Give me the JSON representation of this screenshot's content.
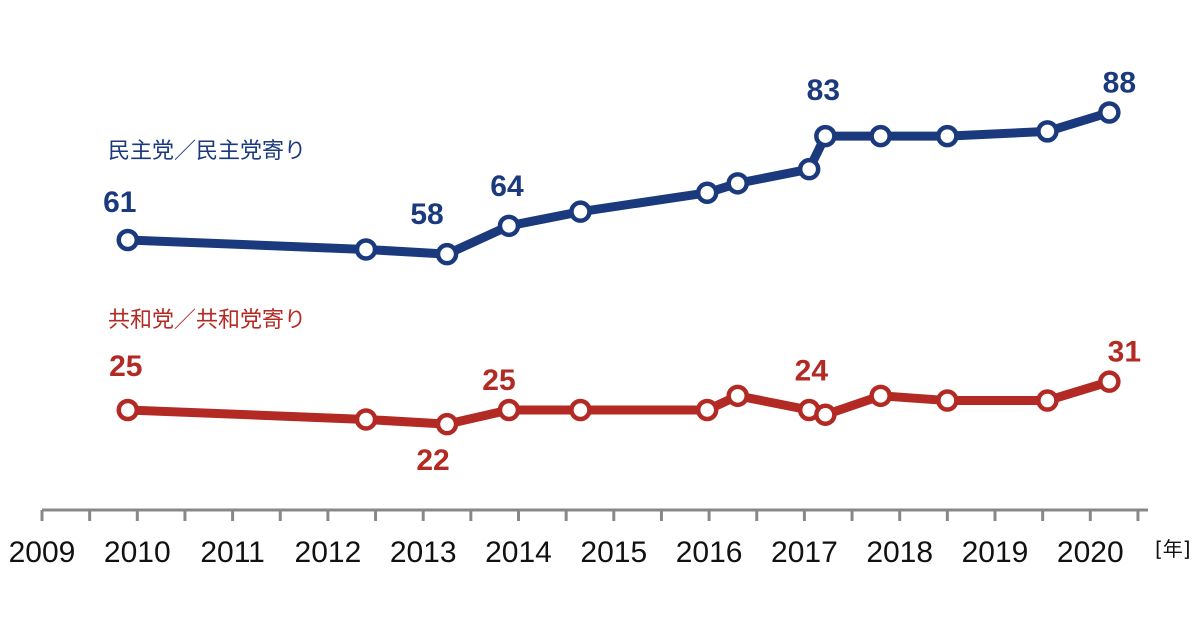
{
  "chart_data": {
    "type": "line",
    "title": "",
    "xlabel": "",
    "ylabel": "",
    "x_unit": "[年]",
    "xlim": [
      2009,
      2020.5
    ],
    "ylim": [
      15,
      95
    ],
    "x_ticks": [
      "2009",
      "2010",
      "2011",
      "2012",
      "2013",
      "2014",
      "2015",
      "2016",
      "2017",
      "2018",
      "2019",
      "2020"
    ],
    "series": [
      {
        "name": "民主党／民主党寄り",
        "color": "#1b3a7e",
        "points": [
          {
            "x": 2009.9,
            "y": 61,
            "label": "61"
          },
          {
            "x": 2012.4,
            "y": 59
          },
          {
            "x": 2013.25,
            "y": 58,
            "label": "58"
          },
          {
            "x": 2013.9,
            "y": 64,
            "label": "64"
          },
          {
            "x": 2014.65,
            "y": 67
          },
          {
            "x": 2015.98,
            "y": 71
          },
          {
            "x": 2016.3,
            "y": 73
          },
          {
            "x": 2017.05,
            "y": 76
          },
          {
            "x": 2017.22,
            "y": 83,
            "label": "83"
          },
          {
            "x": 2017.8,
            "y": 83
          },
          {
            "x": 2018.5,
            "y": 83
          },
          {
            "x": 2019.55,
            "y": 84
          },
          {
            "x": 2020.2,
            "y": 88,
            "label": "88"
          }
        ]
      },
      {
        "name": "共和党／共和党寄り",
        "color": "#b32a24",
        "points": [
          {
            "x": 2009.9,
            "y": 25,
            "label": "25"
          },
          {
            "x": 2012.4,
            "y": 23
          },
          {
            "x": 2013.25,
            "y": 22,
            "label": "22"
          },
          {
            "x": 2013.9,
            "y": 25,
            "label": "25"
          },
          {
            "x": 2014.65,
            "y": 25
          },
          {
            "x": 2015.98,
            "y": 25
          },
          {
            "x": 2016.3,
            "y": 28
          },
          {
            "x": 2017.05,
            "y": 25
          },
          {
            "x": 2017.22,
            "y": 24,
            "label": "24"
          },
          {
            "x": 2017.8,
            "y": 28
          },
          {
            "x": 2018.5,
            "y": 27
          },
          {
            "x": 2019.55,
            "y": 27
          },
          {
            "x": 2020.2,
            "y": 31,
            "label": "31"
          }
        ]
      }
    ]
  }
}
